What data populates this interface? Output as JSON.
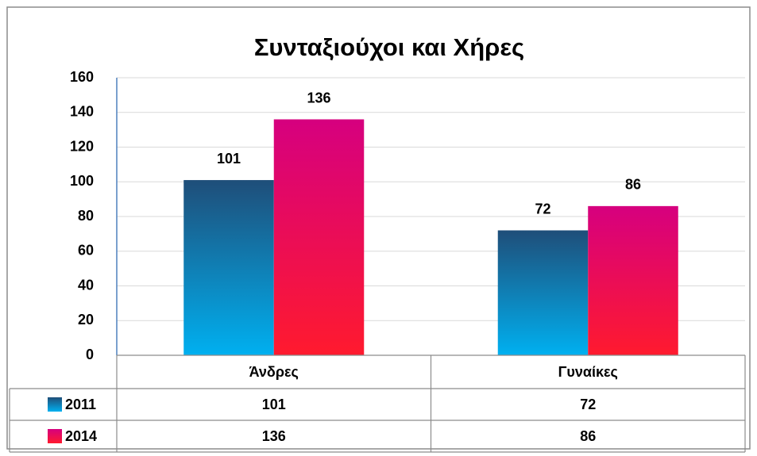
{
  "chart_data": {
    "type": "bar",
    "title": "Συνταξιούχοι και Χήρες",
    "categories": [
      "Άνδρες",
      "Γυναίκες"
    ],
    "series": [
      {
        "name": "2011",
        "color": "#1f4e79",
        "gradient": [
          "#1f4e79",
          "#00b0f0"
        ],
        "values": [
          101,
          72
        ]
      },
      {
        "name": "2014",
        "color": "#d6007f",
        "gradient": [
          "#d6007f",
          "#ff1a2e"
        ],
        "values": [
          136,
          86
        ]
      }
    ],
    "ylim": [
      0,
      160
    ],
    "yticks": [
      0,
      20,
      40,
      60,
      80,
      100,
      120,
      140,
      160
    ],
    "grid": true,
    "data_table": true
  }
}
